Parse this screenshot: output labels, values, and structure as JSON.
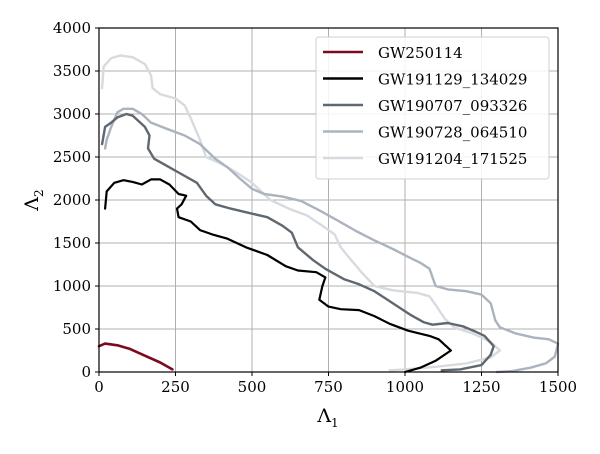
{
  "chart_data": {
    "type": "line",
    "title": "",
    "xlabel": "Λ1",
    "ylabel": "Λ2",
    "xlim": [
      0,
      1500
    ],
    "ylim": [
      0,
      4000
    ],
    "xticks": [
      0,
      250,
      500,
      750,
      1000,
      1250,
      1500
    ],
    "yticks": [
      0,
      500,
      1000,
      1500,
      2000,
      2500,
      3000,
      3500,
      4000
    ],
    "grid": true,
    "legend_position": "upper right",
    "series": [
      {
        "name": "GW250114",
        "color": "#7a0a1e",
        "width": 2.6,
        "points": [
          [
            0,
            300
          ],
          [
            20,
            330
          ],
          [
            60,
            310
          ],
          [
            100,
            270
          ],
          [
            150,
            190
          ],
          [
            200,
            110
          ],
          [
            240,
            30
          ]
        ]
      },
      {
        "name": "GW191129_134029",
        "color": "#000000",
        "width": 2.2,
        "points": [
          [
            20,
            1900
          ],
          [
            25,
            2100
          ],
          [
            50,
            2200
          ],
          [
            80,
            2230
          ],
          [
            110,
            2210
          ],
          [
            140,
            2180
          ],
          [
            170,
            2240
          ],
          [
            200,
            2240
          ],
          [
            230,
            2180
          ],
          [
            260,
            2070
          ],
          [
            285,
            2050
          ],
          [
            270,
            1950
          ],
          [
            255,
            1900
          ],
          [
            260,
            1800
          ],
          [
            300,
            1750
          ],
          [
            330,
            1650
          ],
          [
            370,
            1600
          ],
          [
            420,
            1550
          ],
          [
            480,
            1450
          ],
          [
            550,
            1360
          ],
          [
            610,
            1230
          ],
          [
            650,
            1180
          ],
          [
            710,
            1160
          ],
          [
            740,
            1100
          ],
          [
            730,
            1000
          ],
          [
            720,
            840
          ],
          [
            750,
            760
          ],
          [
            790,
            730
          ],
          [
            850,
            720
          ],
          [
            900,
            650
          ],
          [
            950,
            560
          ],
          [
            1010,
            480
          ],
          [
            1080,
            420
          ],
          [
            1110,
            380
          ],
          [
            1150,
            250
          ],
          [
            1100,
            130
          ],
          [
            1050,
            50
          ],
          [
            1000,
            0
          ]
        ]
      },
      {
        "name": "GW190707_093326",
        "color": "#5f6870",
        "width": 2.4,
        "points": [
          [
            10,
            2650
          ],
          [
            20,
            2850
          ],
          [
            40,
            2900
          ],
          [
            60,
            2960
          ],
          [
            90,
            3000
          ],
          [
            110,
            2980
          ],
          [
            150,
            2850
          ],
          [
            165,
            2750
          ],
          [
            160,
            2600
          ],
          [
            180,
            2480
          ],
          [
            220,
            2400
          ],
          [
            260,
            2320
          ],
          [
            320,
            2200
          ],
          [
            350,
            2050
          ],
          [
            380,
            1950
          ],
          [
            430,
            1900
          ],
          [
            490,
            1850
          ],
          [
            550,
            1800
          ],
          [
            600,
            1700
          ],
          [
            630,
            1620
          ],
          [
            650,
            1450
          ],
          [
            700,
            1300
          ],
          [
            740,
            1200
          ],
          [
            800,
            1080
          ],
          [
            850,
            1020
          ],
          [
            900,
            940
          ],
          [
            960,
            800
          ],
          [
            1020,
            660
          ],
          [
            1060,
            580
          ],
          [
            1090,
            550
          ],
          [
            1140,
            570
          ],
          [
            1190,
            530
          ],
          [
            1230,
            470
          ],
          [
            1260,
            420
          ],
          [
            1290,
            300
          ],
          [
            1280,
            200
          ],
          [
            1250,
            80
          ],
          [
            1180,
            30
          ],
          [
            1120,
            20
          ]
        ]
      },
      {
        "name": "GW190728_064510",
        "color": "#aab3be",
        "width": 2.4,
        "points": [
          [
            20,
            2600
          ],
          [
            25,
            2700
          ],
          [
            40,
            2850
          ],
          [
            60,
            3020
          ],
          [
            80,
            3060
          ],
          [
            110,
            3060
          ],
          [
            140,
            3000
          ],
          [
            170,
            2900
          ],
          [
            220,
            2830
          ],
          [
            280,
            2750
          ],
          [
            330,
            2650
          ],
          [
            380,
            2480
          ],
          [
            420,
            2380
          ],
          [
            460,
            2250
          ],
          [
            500,
            2130
          ],
          [
            540,
            2070
          ],
          [
            600,
            2040
          ],
          [
            660,
            1990
          ],
          [
            720,
            1880
          ],
          [
            780,
            1760
          ],
          [
            840,
            1640
          ],
          [
            900,
            1530
          ],
          [
            960,
            1430
          ],
          [
            1010,
            1340
          ],
          [
            1050,
            1270
          ],
          [
            1080,
            1200
          ],
          [
            1100,
            1000
          ],
          [
            1140,
            960
          ],
          [
            1200,
            940
          ],
          [
            1250,
            900
          ],
          [
            1280,
            800
          ],
          [
            1295,
            600
          ],
          [
            1310,
            520
          ],
          [
            1360,
            450
          ],
          [
            1420,
            400
          ],
          [
            1470,
            380
          ],
          [
            1500,
            330
          ],
          [
            1490,
            180
          ],
          [
            1460,
            100
          ],
          [
            1410,
            50
          ],
          [
            1350,
            10
          ],
          [
            1300,
            0
          ]
        ]
      },
      {
        "name": "GW191204_171525",
        "color": "#d7dbe0",
        "width": 2.4,
        "points": [
          [
            10,
            3300
          ],
          [
            15,
            3550
          ],
          [
            40,
            3650
          ],
          [
            70,
            3680
          ],
          [
            110,
            3660
          ],
          [
            150,
            3580
          ],
          [
            170,
            3450
          ],
          [
            175,
            3300
          ],
          [
            200,
            3230
          ],
          [
            250,
            3180
          ],
          [
            280,
            3100
          ],
          [
            300,
            2950
          ],
          [
            330,
            2700
          ],
          [
            350,
            2500
          ],
          [
            400,
            2420
          ],
          [
            450,
            2320
          ],
          [
            500,
            2200
          ],
          [
            560,
            2000
          ],
          [
            620,
            1900
          ],
          [
            680,
            1820
          ],
          [
            730,
            1700
          ],
          [
            770,
            1600
          ],
          [
            790,
            1450
          ],
          [
            820,
            1320
          ],
          [
            860,
            1150
          ],
          [
            900,
            1000
          ],
          [
            960,
            950
          ],
          [
            1040,
            920
          ],
          [
            1080,
            880
          ],
          [
            1100,
            780
          ],
          [
            1130,
            620
          ],
          [
            1160,
            520
          ],
          [
            1220,
            450
          ],
          [
            1280,
            350
          ],
          [
            1310,
            250
          ],
          [
            1280,
            170
          ],
          [
            1200,
            100
          ],
          [
            1100,
            60
          ],
          [
            1000,
            30
          ],
          [
            950,
            20
          ]
        ]
      }
    ]
  }
}
